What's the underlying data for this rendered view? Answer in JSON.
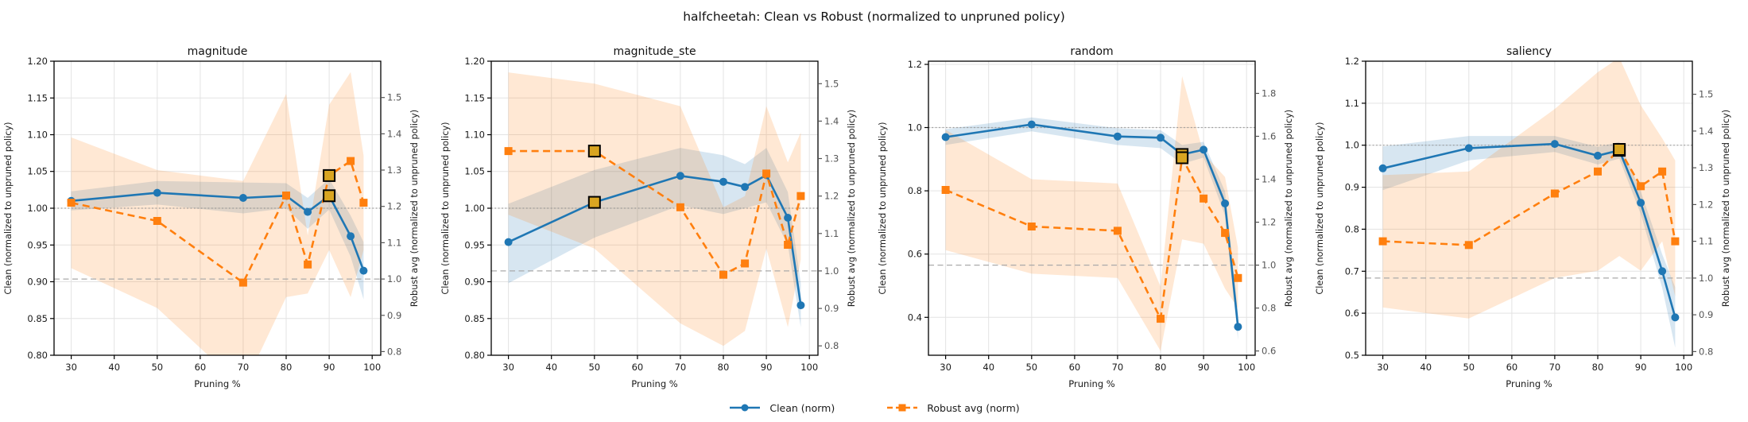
{
  "suptitle": "halfcheetah: Clean vs Robust (normalized to unpruned policy)",
  "legend": [
    {
      "label": "Clean (norm)",
      "color": "#1f77b4",
      "marker": "circle",
      "dash": "none"
    },
    {
      "label": "Robust avg (norm)",
      "color": "#ff7f0e",
      "marker": "square",
      "dash": "7 4"
    }
  ],
  "colors": {
    "clean": "#1f77b4",
    "robust": "#ff7f0e",
    "clean_band": "rgba(31,119,180,0.18)",
    "robust_band": "rgba(255,127,14,0.18)",
    "highlight_fill": "#d9a521",
    "highlight_edge": "#000000",
    "grid": "#e3e3e3",
    "ref_dotted": "#999999",
    "ref_dashed": "#aaaaaa",
    "right_tick": "#555555",
    "spine": "#000000"
  },
  "x_axis": {
    "label": "Pruning %",
    "min": 26,
    "max": 102,
    "ticks": [
      30,
      40,
      50,
      60,
      70,
      80,
      90,
      100
    ]
  },
  "chart_data": [
    {
      "type": "line",
      "title": "magnitude",
      "x": [
        30,
        50,
        70,
        80,
        85,
        90,
        95,
        98
      ],
      "left_axis": {
        "label": "Clean (normalized to unpruned policy)",
        "min": 0.8,
        "max": 1.2,
        "ticks": [
          0.8,
          0.85,
          0.9,
          0.95,
          1.0,
          1.05,
          1.1,
          1.15,
          1.2
        ],
        "decimals": 2
      },
      "right_axis": {
        "label": "Robust avg (normalized to unpruned policy)",
        "min": 0.79,
        "max": 1.6,
        "ticks": [
          0.8,
          0.9,
          1.0,
          1.1,
          1.2,
          1.3,
          1.4,
          1.5
        ],
        "decimals": 1
      },
      "ref_clean": 1.0,
      "ref_robust": 1.0,
      "series": [
        {
          "name": "Clean (norm)",
          "axis": "left",
          "values": [
            1.01,
            1.021,
            1.014,
            1.017,
            0.995,
            1.017,
            0.962,
            0.915
          ],
          "band_low": [
            0.997,
            1.005,
            0.993,
            1.0,
            0.972,
            0.998,
            0.934,
            0.876
          ],
          "band_high": [
            1.023,
            1.037,
            1.035,
            1.034,
            1.014,
            1.04,
            0.99,
            0.954
          ],
          "highlight_x": [
            90
          ]
        },
        {
          "name": "Robust avg (norm)",
          "axis": "right",
          "values": [
            1.21,
            1.16,
            0.99,
            1.23,
            1.04,
            1.285,
            1.325,
            1.21
          ],
          "band_low": [
            1.03,
            0.92,
            0.7,
            0.95,
            0.96,
            1.08,
            0.95,
            1.08
          ],
          "band_high": [
            1.39,
            1.3,
            1.27,
            1.51,
            1.12,
            1.48,
            1.57,
            1.34
          ],
          "highlight_x": [
            90
          ]
        }
      ]
    },
    {
      "type": "line",
      "title": "magnitude_ste",
      "x": [
        30,
        50,
        70,
        80,
        85,
        90,
        95,
        98
      ],
      "left_axis": {
        "label": "Clean (normalized to unpruned policy)",
        "min": 0.8,
        "max": 1.2,
        "ticks": [
          0.8,
          0.85,
          0.9,
          0.95,
          1.0,
          1.05,
          1.1,
          1.15,
          1.2
        ],
        "decimals": 2
      },
      "right_axis": {
        "label": "Robust avg (normalized to unpruned policy)",
        "min": 0.775,
        "max": 1.56,
        "ticks": [
          0.8,
          0.9,
          1.0,
          1.1,
          1.2,
          1.3,
          1.4,
          1.5
        ],
        "decimals": 1
      },
      "ref_clean": 1.0,
      "ref_robust": 1.0,
      "series": [
        {
          "name": "Clean (norm)",
          "axis": "left",
          "values": [
            0.954,
            1.008,
            1.044,
            1.036,
            1.029,
            1.045,
            0.987,
            0.868
          ],
          "band_low": [
            0.898,
            0.96,
            1.004,
            0.992,
            1.0,
            1.008,
            0.95,
            0.838
          ],
          "band_high": [
            1.006,
            1.052,
            1.082,
            1.072,
            1.06,
            1.082,
            1.022,
            0.898
          ],
          "highlight_x": [
            50
          ]
        },
        {
          "name": "Robust avg (norm)",
          "axis": "right",
          "values": [
            1.32,
            1.32,
            1.17,
            0.99,
            1.02,
            1.26,
            1.07,
            1.2
          ],
          "band_low": [
            1.15,
            1.06,
            0.86,
            0.8,
            0.84,
            1.06,
            0.85,
            1.03
          ],
          "band_high": [
            1.53,
            1.5,
            1.44,
            1.17,
            1.2,
            1.44,
            1.29,
            1.37
          ],
          "highlight_x": [
            50
          ]
        }
      ]
    },
    {
      "type": "line",
      "title": "random",
      "x": [
        30,
        50,
        70,
        80,
        85,
        90,
        95,
        98
      ],
      "left_axis": {
        "label": "Clean (normalized to unpruned policy)",
        "min": 0.28,
        "max": 1.21,
        "ticks": [
          0.4,
          0.6,
          0.8,
          1.0,
          1.2
        ],
        "decimals": 1
      },
      "right_axis": {
        "label": "Robust avg (normalized to unpruned policy)",
        "min": 0.58,
        "max": 1.95,
        "ticks": [
          0.6,
          0.8,
          1.0,
          1.2,
          1.4,
          1.6,
          1.8
        ],
        "decimals": 1
      },
      "ref_clean": 1.0,
      "ref_robust": 1.0,
      "series": [
        {
          "name": "Clean (norm)",
          "axis": "left",
          "values": [
            0.97,
            1.01,
            0.972,
            0.968,
            0.915,
            0.93,
            0.76,
            0.37
          ],
          "band_low": [
            0.945,
            0.988,
            0.945,
            0.935,
            0.885,
            0.905,
            0.722,
            0.328
          ],
          "band_high": [
            0.995,
            1.032,
            0.998,
            0.992,
            0.945,
            0.955,
            0.798,
            0.412
          ],
          "highlight_x": [
            85
          ]
        },
        {
          "name": "Robust avg (norm)",
          "axis": "right",
          "values": [
            1.35,
            1.18,
            1.16,
            0.75,
            1.5,
            1.31,
            1.15,
            0.94
          ],
          "band_low": [
            1.07,
            0.96,
            0.94,
            0.6,
            1.12,
            1.1,
            0.89,
            0.8
          ],
          "band_high": [
            1.63,
            1.4,
            1.38,
            0.9,
            1.88,
            1.52,
            1.41,
            1.08
          ],
          "highlight_x": [
            85
          ]
        }
      ]
    },
    {
      "type": "line",
      "title": "saliency",
      "x": [
        30,
        50,
        70,
        80,
        85,
        90,
        95,
        98
      ],
      "left_axis": {
        "label": "Clean (normalized to unpruned policy)",
        "min": 0.5,
        "max": 1.2,
        "ticks": [
          0.5,
          0.6,
          0.7,
          0.8,
          0.9,
          1.0,
          1.1,
          1.2
        ],
        "decimals": 1
      },
      "right_axis": {
        "label": "Robust avg (normalized to unpruned policy)",
        "min": 0.79,
        "max": 1.59,
        "ticks": [
          0.8,
          0.9,
          1.0,
          1.1,
          1.2,
          1.3,
          1.4,
          1.5
        ],
        "decimals": 1
      },
      "ref_clean": 1.0,
      "ref_robust": 1.0,
      "series": [
        {
          "name": "Clean (norm)",
          "axis": "left",
          "values": [
            0.945,
            0.993,
            1.003,
            0.975,
            0.988,
            0.863,
            0.7,
            0.59
          ],
          "band_low": [
            0.893,
            0.964,
            0.984,
            0.954,
            0.968,
            0.836,
            0.66,
            0.518
          ],
          "band_high": [
            0.997,
            1.022,
            1.022,
            0.996,
            1.008,
            0.89,
            0.74,
            0.662
          ],
          "highlight_x": [
            85
          ]
        },
        {
          "name": "Robust avg (norm)",
          "axis": "right",
          "values": [
            1.1,
            1.09,
            1.23,
            1.29,
            1.35,
            1.25,
            1.29,
            1.1
          ],
          "band_low": [
            0.92,
            0.89,
            1.0,
            1.02,
            1.06,
            1.02,
            1.1,
            0.95
          ],
          "band_high": [
            1.28,
            1.29,
            1.46,
            1.56,
            1.6,
            1.47,
            1.38,
            1.32
          ],
          "highlight_x": [
            85
          ]
        }
      ]
    }
  ]
}
